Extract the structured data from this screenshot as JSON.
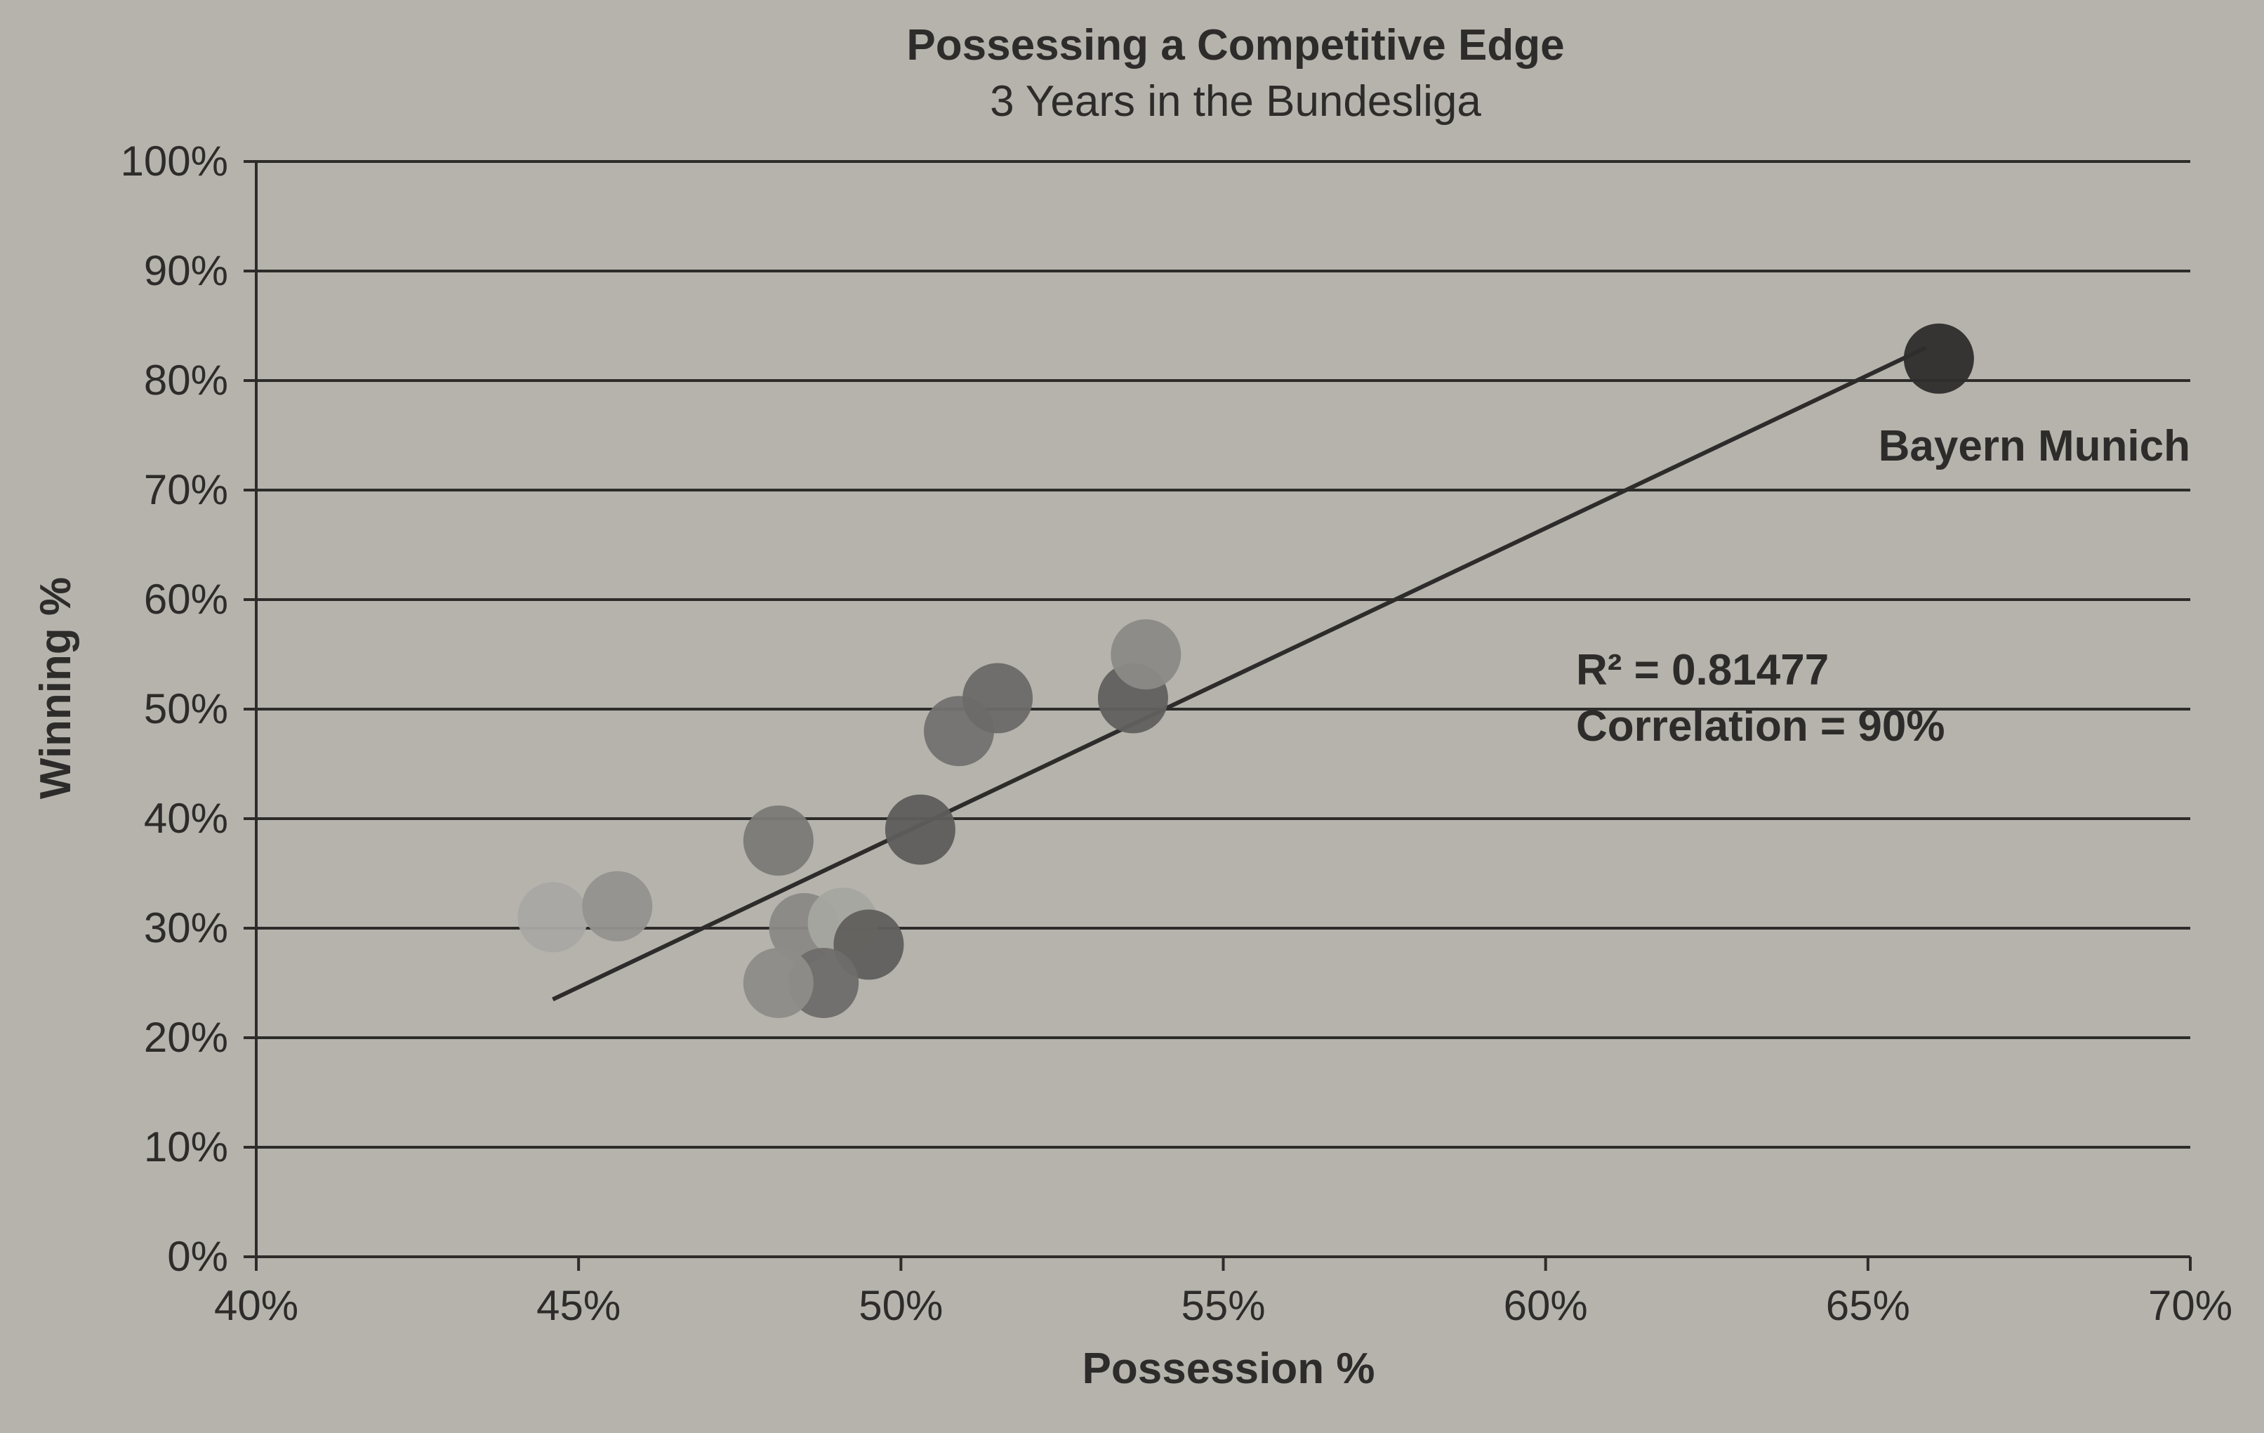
{
  "chart_data": {
    "type": "scatter",
    "title": "Possessing a Competitive Edge",
    "subtitle": "3 Years in the Bundesliga",
    "xlabel": "Possession %",
    "ylabel": "Winning %",
    "xlim": [
      40,
      70
    ],
    "ylim": [
      0,
      100
    ],
    "x_ticks": [
      40,
      45,
      50,
      55,
      60,
      65,
      70
    ],
    "x_tick_labels": [
      "40%",
      "45%",
      "50%",
      "55%",
      "60%",
      "65%",
      "70%"
    ],
    "y_ticks": [
      0,
      10,
      20,
      30,
      40,
      50,
      60,
      70,
      80,
      90,
      100
    ],
    "y_tick_labels": [
      "0%",
      "10%",
      "20%",
      "30%",
      "40%",
      "50%",
      "60%",
      "70%",
      "80%",
      "90%",
      "100%"
    ],
    "grid": "horizontal",
    "points": [
      {
        "x": 44.6,
        "y": 31,
        "shade": "#a9a8a3"
      },
      {
        "x": 45.6,
        "y": 32,
        "shade": "#93928e"
      },
      {
        "x": 48.1,
        "y": 38,
        "shade": "#7b7a77"
      },
      {
        "x": 48.5,
        "y": 30,
        "shade": "#8a8986"
      },
      {
        "x": 49.1,
        "y": 30.5,
        "shade": "#a7a6a1"
      },
      {
        "x": 49.5,
        "y": 28.5,
        "shade": "#615f5d"
      },
      {
        "x": 48.8,
        "y": 25,
        "shade": "#6e6d6a"
      },
      {
        "x": 48.1,
        "y": 25,
        "shade": "#8d8c88"
      },
      {
        "x": 50.3,
        "y": 39,
        "shade": "#5e5d5b"
      },
      {
        "x": 50.9,
        "y": 48,
        "shade": "#737270"
      },
      {
        "x": 51.5,
        "y": 51,
        "shade": "#6b6a68"
      },
      {
        "x": 53.6,
        "y": 51,
        "shade": "#61605e"
      },
      {
        "x": 53.8,
        "y": 55,
        "shade": "#8b8a87"
      },
      {
        "x": 66.1,
        "y": 82,
        "shade": "#2f2d2c",
        "label": "Bayern Munich"
      }
    ],
    "trendline": {
      "x": [
        44.6,
        65.9
      ],
      "y": [
        23.5,
        83
      ]
    },
    "annotations": [
      "R² = 0.81477",
      "Correlation = 90%"
    ],
    "colors": {
      "line": "#2e2c2a",
      "grid": "#2e2c2a",
      "background": "#b5b3ac"
    }
  }
}
